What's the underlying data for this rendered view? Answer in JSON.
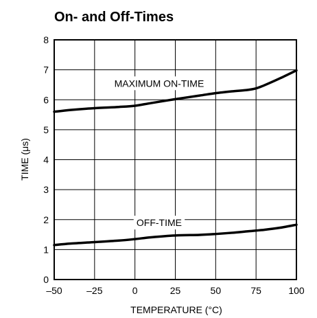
{
  "chart_data": {
    "type": "line",
    "title": "On- and Off-Times",
    "xlabel": "TEMPERATURE (°C)",
    "ylabel": "TIME (μs)",
    "xlim": [
      -50,
      100
    ],
    "ylim": [
      0,
      8
    ],
    "x_ticks": [
      -50,
      -25,
      0,
      25,
      50,
      75,
      100
    ],
    "x_tick_labels": [
      "–50",
      "–25",
      "0",
      "25",
      "50",
      "75",
      "100"
    ],
    "y_ticks": [
      0,
      1,
      2,
      3,
      4,
      5,
      6,
      7,
      8
    ],
    "y_tick_labels": [
      "0",
      "1",
      "2",
      "3",
      "4",
      "5",
      "6",
      "7",
      "8"
    ],
    "grid": true,
    "series": [
      {
        "name": "MAXIMUM ON-TIME",
        "x": [
          -50,
          -40,
          -25,
          -10,
          0,
          10,
          25,
          40,
          50,
          60,
          70,
          75,
          80,
          90,
          100
        ],
        "y": [
          5.6,
          5.66,
          5.72,
          5.76,
          5.8,
          5.89,
          6.02,
          6.14,
          6.22,
          6.28,
          6.33,
          6.38,
          6.48,
          6.72,
          6.98
        ]
      },
      {
        "name": "OFF-TIME",
        "x": [
          -50,
          -40,
          -25,
          -10,
          0,
          10,
          25,
          40,
          50,
          60,
          70,
          80,
          90,
          100
        ],
        "y": [
          1.15,
          1.2,
          1.25,
          1.3,
          1.35,
          1.41,
          1.47,
          1.49,
          1.52,
          1.56,
          1.61,
          1.66,
          1.73,
          1.83
        ]
      }
    ]
  }
}
